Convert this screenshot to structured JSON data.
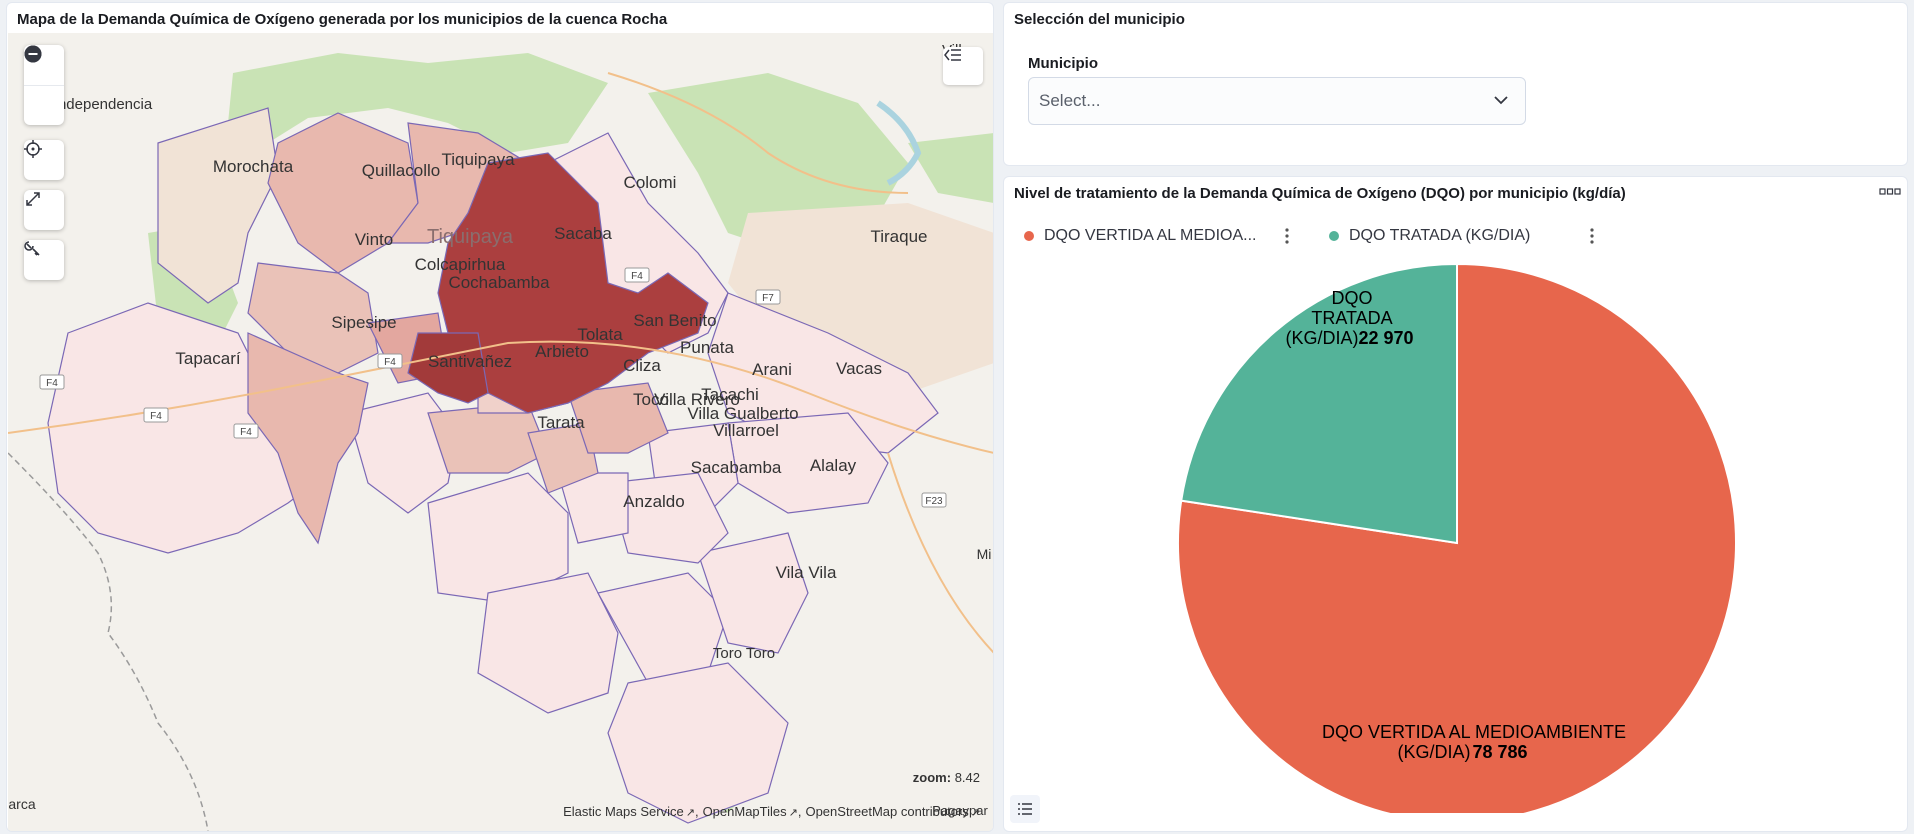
{
  "map": {
    "title": "Mapa de la Demanda Química de Oxígeno generada por los municipios de la cuenca Rocha",
    "zoom_label": "zoom:",
    "zoom_value": "8.42",
    "attribution": [
      "Elastic Maps Service",
      "OpenMapTiles",
      "OpenStreetMap contributors"
    ],
    "place_labels": [
      "Morochata",
      "Quillacollo",
      "Tiquipaya",
      "Colomi",
      "Vinto",
      "Tiquipaya",
      "Sacaba",
      "Colcapirhua",
      "Cochabamba",
      "Tiraque",
      "Sipesipe",
      "Tolata",
      "San Benito",
      "Tapacarí",
      "Santivañez",
      "Arbieto",
      "Punata",
      "Cliza",
      "Arani",
      "Vacas",
      "Tacachi",
      "Toco",
      "Villa Rivero",
      "Villa Gualberto",
      "Tarata",
      "Villarroel",
      "Sacabamba",
      "Alalay",
      "Anzaldo",
      "Vila Vila",
      "Independencia",
      "Villa",
      "Mi",
      "Toro Toro",
      "Pagaypar",
      "arca"
    ],
    "road_labels": [
      "F4",
      "F4",
      "F4",
      "F4",
      "F4",
      "F7",
      "F23"
    ],
    "colors": {
      "dark": "#ab3f3f",
      "medium": "#e1a89f",
      "light": "#f5dcdc",
      "pale": "#f9e6e6",
      "green": "#c9e3b5",
      "water": "#aad3df"
    }
  },
  "selection": {
    "title": "Selección del municipio",
    "field_label": "Municipio",
    "placeholder": "Select..."
  },
  "pie": {
    "title": "Nivel de tratamiento de la Demanda Química de Oxígeno (DQO) por municipio (kg/día)",
    "legend": [
      {
        "label": "DQO VERTIDA AL MEDIOA...",
        "color": "#e7664c"
      },
      {
        "label": "DQO TRATADA (KG/DIA)",
        "color": "#54b399"
      }
    ],
    "slice_labels": {
      "vertida_name_1": "DQO VERTIDA AL MEDIOAMBIENTE",
      "vertida_name_2": "(KG/DIA)",
      "vertida_value": "78 786",
      "tratada_name_1": "DQO",
      "tratada_name_2": "TRATADA",
      "tratada_name_3": "(KG/DIA)",
      "tratada_value": "22 970"
    }
  },
  "chart_data": {
    "type": "pie",
    "title": "Nivel de tratamiento de la Demanda Química de Oxígeno (DQO) por municipio (kg/día)",
    "categories": [
      "DQO VERTIDA AL MEDIOAMBIENTE (KG/DIA)",
      "DQO TRATADA (KG/DIA)"
    ],
    "values": [
      78786,
      22970
    ],
    "colors": [
      "#e7664c",
      "#54b399"
    ],
    "legend_position": "top-left"
  }
}
